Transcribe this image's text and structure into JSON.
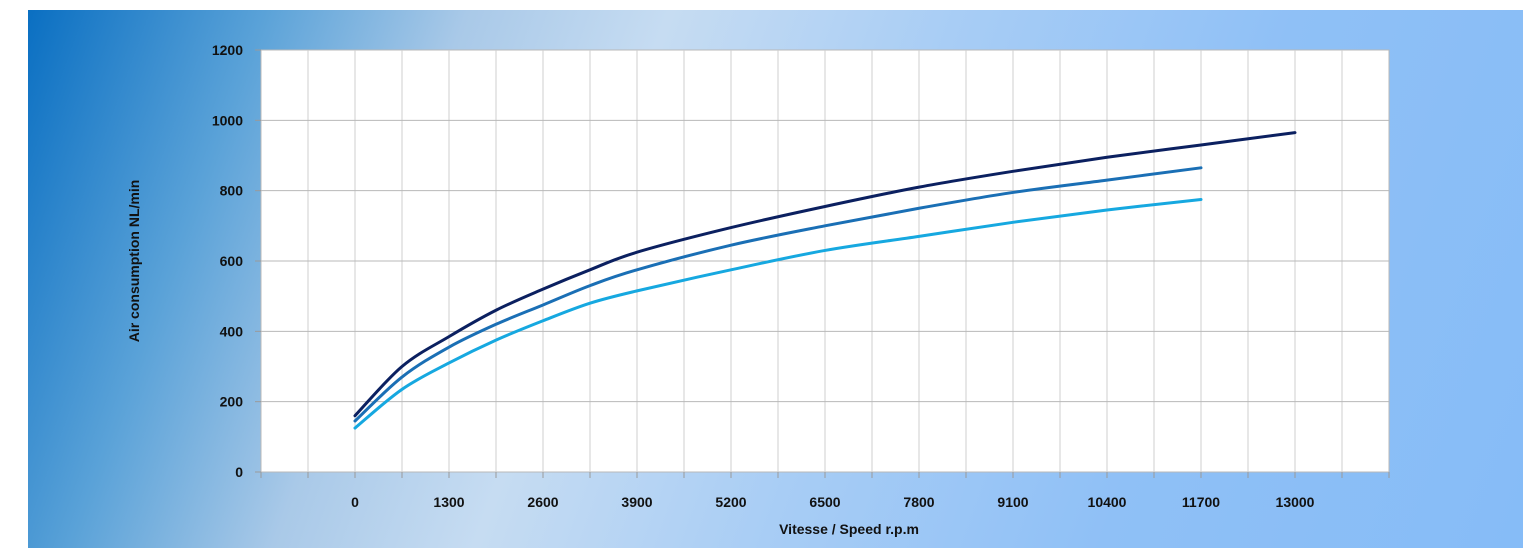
{
  "chart_data": {
    "type": "line",
    "title": "",
    "xlabel": "Vitesse / Speed r.p.m",
    "ylabel": "Air consumption NL/min",
    "xlim": [
      -1300,
      14300
    ],
    "ylim": [
      0,
      1200
    ],
    "x_ticks": [
      0,
      1300,
      2600,
      3900,
      5200,
      6500,
      7800,
      9100,
      10400,
      11700,
      13000
    ],
    "y_ticks": [
      0,
      200,
      400,
      600,
      800,
      1000,
      1200
    ],
    "grid": true,
    "legend": "none",
    "series": [
      {
        "color": "#0b2060",
        "x": [
          0,
          650,
          1300,
          1950,
          2600,
          3250,
          3900,
          5200,
          6500,
          7800,
          9100,
          10400,
          11700,
          13000
        ],
        "y": [
          160,
          300,
          385,
          460,
          520,
          575,
          625,
          695,
          755,
          810,
          855,
          895,
          930,
          965
        ]
      },
      {
        "color": "#1a6fb5",
        "x": [
          0,
          650,
          1300,
          1950,
          2600,
          3250,
          3900,
          5200,
          6500,
          7800,
          9100,
          10400,
          11700
        ],
        "y": [
          145,
          270,
          355,
          420,
          475,
          530,
          575,
          645,
          700,
          750,
          795,
          830,
          865
        ]
      },
      {
        "color": "#16a8e0",
        "x": [
          0,
          650,
          1300,
          1950,
          2600,
          3250,
          3900,
          5200,
          6500,
          7800,
          9100,
          10400,
          11700
        ],
        "y": [
          125,
          235,
          310,
          375,
          430,
          480,
          515,
          575,
          630,
          670,
          710,
          745,
          775
        ]
      }
    ]
  }
}
